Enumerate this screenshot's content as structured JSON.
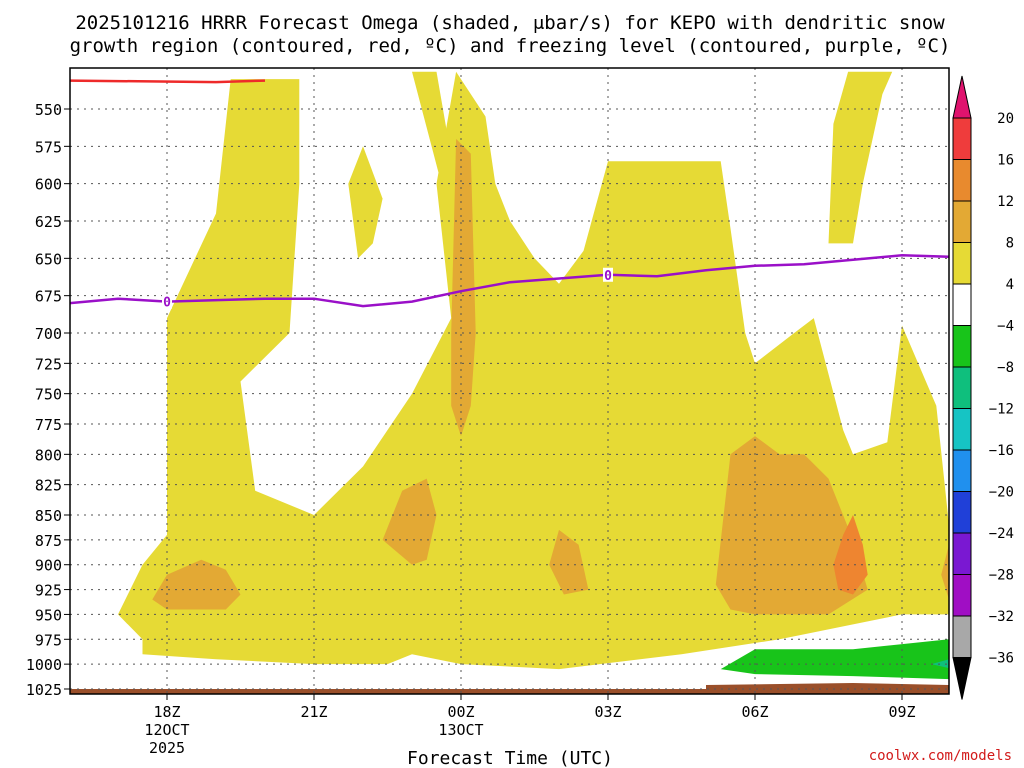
{
  "chart_data": {
    "type": "heatmap",
    "title_line1": "2025101216 HRRR Forecast Omega (shaded, μbar/s) for KEPO with dendritic snow",
    "title_line2": "growth region (contoured, red, ºC) and freezing level (contoured, purple, ºC)",
    "xlabel": "Forecast Time (UTC)",
    "credit": "coolwx.com/models",
    "x_range_hours": [
      -2.0,
      16.0
    ],
    "x_ticks": [
      {
        "hour": 0,
        "label": "18Z",
        "sub1": "12OCT",
        "sub2": "2025"
      },
      {
        "hour": 3,
        "label": "21Z",
        "sub1": "",
        "sub2": ""
      },
      {
        "hour": 6,
        "label": "00Z",
        "sub1": "13OCT",
        "sub2": ""
      },
      {
        "hour": 9,
        "label": "03Z",
        "sub1": "",
        "sub2": ""
      },
      {
        "hour": 12,
        "label": "06Z",
        "sub1": "",
        "sub2": ""
      },
      {
        "hour": 15,
        "label": "09Z",
        "sub1": "",
        "sub2": ""
      }
    ],
    "y_range_hpa": [
      1030,
      525
    ],
    "y_ticks": [
      550,
      575,
      600,
      625,
      650,
      675,
      700,
      725,
      750,
      775,
      800,
      825,
      850,
      875,
      900,
      925,
      950,
      975,
      1000,
      1025
    ],
    "colorbar": {
      "levels": [
        "20",
        "16",
        "12",
        "8",
        "4",
        "−4",
        "−8",
        "−12",
        "−16",
        "−20",
        "−24",
        "−28",
        "−32",
        "−36"
      ],
      "colors": [
        "#e0136e",
        "#ef3c3c",
        "#e88a2e",
        "#e3a934",
        "#e6da35",
        "#ffffff",
        "#18c41a",
        "#0fbf7d",
        "#16c4c4",
        "#2090ee",
        "#2040d8",
        "#7a18d2",
        "#a00ec4",
        "#a8a8a8",
        "#000000"
      ]
    },
    "freezing_level": {
      "label": "0",
      "points": [
        [
          -2.0,
          680
        ],
        [
          -1.0,
          677
        ],
        [
          0.0,
          679
        ],
        [
          2.0,
          677
        ],
        [
          3.0,
          677
        ],
        [
          4.0,
          682
        ],
        [
          5.0,
          679
        ],
        [
          6.0,
          672
        ],
        [
          7.0,
          666
        ],
        [
          9.0,
          661
        ],
        [
          10.0,
          662
        ],
        [
          11.0,
          658
        ],
        [
          12.0,
          655
        ],
        [
          13.0,
          654
        ],
        [
          14.0,
          651
        ],
        [
          15.0,
          648
        ],
        [
          16.0,
          649
        ]
      ],
      "label_hours": [
        0.0,
        9.0
      ]
    },
    "dgz_top": {
      "points": [
        [
          -2.0,
          531
        ],
        [
          1.0,
          532
        ],
        [
          2.0,
          531
        ]
      ]
    },
    "omega_regions": [
      {
        "level": "4 to 8",
        "polygon": [
          [
            -0.5,
            975
          ],
          [
            -1.0,
            950
          ],
          [
            -0.5,
            900
          ],
          [
            0.0,
            870
          ],
          [
            0.0,
            690
          ],
          [
            1.0,
            620
          ],
          [
            1.3,
            530
          ],
          [
            2.7,
            530
          ],
          [
            2.7,
            600
          ],
          [
            2.5,
            700
          ],
          [
            1.5,
            740
          ],
          [
            1.8,
            830
          ],
          [
            3.0,
            850
          ],
          [
            4.0,
            810
          ],
          [
            5.0,
            750
          ],
          [
            5.8,
            690
          ],
          [
            5.5,
            600
          ],
          [
            5.9,
            525
          ],
          [
            6.5,
            555
          ],
          [
            6.7,
            600
          ],
          [
            7.0,
            625
          ],
          [
            7.5,
            650
          ],
          [
            8.0,
            667
          ],
          [
            8.5,
            645
          ],
          [
            9.0,
            585
          ],
          [
            11.3,
            585
          ],
          [
            11.5,
            630
          ],
          [
            11.8,
            700
          ],
          [
            12.0,
            725
          ],
          [
            12.8,
            700
          ],
          [
            13.2,
            690
          ],
          [
            13.8,
            780
          ],
          [
            14.0,
            800
          ],
          [
            14.7,
            790
          ],
          [
            15.0,
            695
          ],
          [
            15.7,
            760
          ],
          [
            16.0,
            860
          ],
          [
            16.0,
            950
          ],
          [
            15.0,
            950
          ],
          [
            14.0,
            960
          ],
          [
            12.5,
            975
          ],
          [
            10.5,
            990
          ],
          [
            8.0,
            1005
          ],
          [
            6.0,
            1000
          ],
          [
            5.0,
            990
          ],
          [
            4.5,
            1000
          ],
          [
            3.0,
            1000
          ],
          [
            1.0,
            995
          ],
          [
            -0.5,
            990
          ]
        ]
      },
      {
        "level": "4 to 8",
        "polygon": [
          [
            5.0,
            525
          ],
          [
            5.5,
            525
          ],
          [
            6.0,
            620
          ],
          [
            6.4,
            700
          ]
        ]
      },
      {
        "level": "4 to 8",
        "polygon": [
          [
            3.7,
            600
          ],
          [
            3.9,
            650
          ],
          [
            4.2,
            640
          ],
          [
            4.4,
            610
          ],
          [
            4.0,
            575
          ]
        ]
      },
      {
        "level": "4 to 8",
        "polygon": [
          [
            13.5,
            640
          ],
          [
            14.0,
            640
          ],
          [
            14.2,
            600
          ],
          [
            14.6,
            540
          ],
          [
            14.8,
            525
          ],
          [
            13.9,
            525
          ],
          [
            13.6,
            560
          ]
        ]
      },
      {
        "level": "8 to 12",
        "polygon": [
          [
            -0.3,
            935
          ],
          [
            0.0,
            910
          ],
          [
            0.7,
            895
          ],
          [
            1.2,
            905
          ],
          [
            1.5,
            930
          ],
          [
            1.2,
            945
          ],
          [
            0.0,
            945
          ]
        ]
      },
      {
        "level": "8 to 12",
        "polygon": [
          [
            4.4,
            875
          ],
          [
            4.8,
            830
          ],
          [
            5.3,
            820
          ],
          [
            5.5,
            850
          ],
          [
            5.3,
            895
          ],
          [
            5.0,
            900
          ]
        ]
      },
      {
        "level": "8 to 12",
        "polygon": [
          [
            5.9,
            570
          ],
          [
            6.2,
            580
          ],
          [
            6.3,
            700
          ],
          [
            6.2,
            760
          ],
          [
            6.0,
            785
          ],
          [
            5.8,
            760
          ],
          [
            5.8,
            700
          ]
        ]
      },
      {
        "level": "8 to 12",
        "polygon": [
          [
            7.8,
            900
          ],
          [
            8.0,
            865
          ],
          [
            8.4,
            880
          ],
          [
            8.6,
            925
          ],
          [
            8.1,
            930
          ]
        ]
      },
      {
        "level": "8 to 12",
        "polygon": [
          [
            11.2,
            920
          ],
          [
            11.5,
            800
          ],
          [
            12.0,
            785
          ],
          [
            12.5,
            800
          ],
          [
            13.0,
            800
          ],
          [
            13.5,
            820
          ],
          [
            14.0,
            875
          ],
          [
            14.3,
            925
          ],
          [
            13.5,
            950
          ],
          [
            12.0,
            950
          ],
          [
            11.5,
            945
          ]
        ]
      },
      {
        "level": "12 to 16",
        "polygon": [
          [
            13.6,
            900
          ],
          [
            13.8,
            870
          ],
          [
            14.0,
            850
          ],
          [
            14.2,
            880
          ],
          [
            14.3,
            910
          ],
          [
            14.0,
            930
          ],
          [
            13.7,
            925
          ]
        ]
      },
      {
        "level": "8 to 12",
        "polygon": [
          [
            15.8,
            910
          ],
          [
            16.0,
            880
          ],
          [
            16.0,
            935
          ]
        ]
      },
      {
        "level": "-4 to -8",
        "polygon": [
          [
            11.3,
            1005
          ],
          [
            12.0,
            985
          ],
          [
            14.0,
            985
          ],
          [
            16.0,
            975
          ],
          [
            16.0,
            1015
          ],
          [
            14.0,
            1012
          ],
          [
            12.0,
            1010
          ]
        ]
      },
      {
        "level": "-8 to -12",
        "polygon": [
          [
            15.6,
            1000
          ],
          [
            16.0,
            995
          ],
          [
            16.0,
            1004
          ]
        ]
      },
      {
        "level": "ground",
        "polygon": [
          [
            -2.0,
            1025
          ],
          [
            16.0,
            1025
          ],
          [
            16.0,
            1030
          ],
          [
            -2.0,
            1030
          ]
        ]
      },
      {
        "level": "ground",
        "polygon": [
          [
            11.0,
            1021
          ],
          [
            14.0,
            1019
          ],
          [
            16.0,
            1021
          ],
          [
            16.0,
            1026
          ],
          [
            11.0,
            1026
          ]
        ]
      }
    ]
  }
}
